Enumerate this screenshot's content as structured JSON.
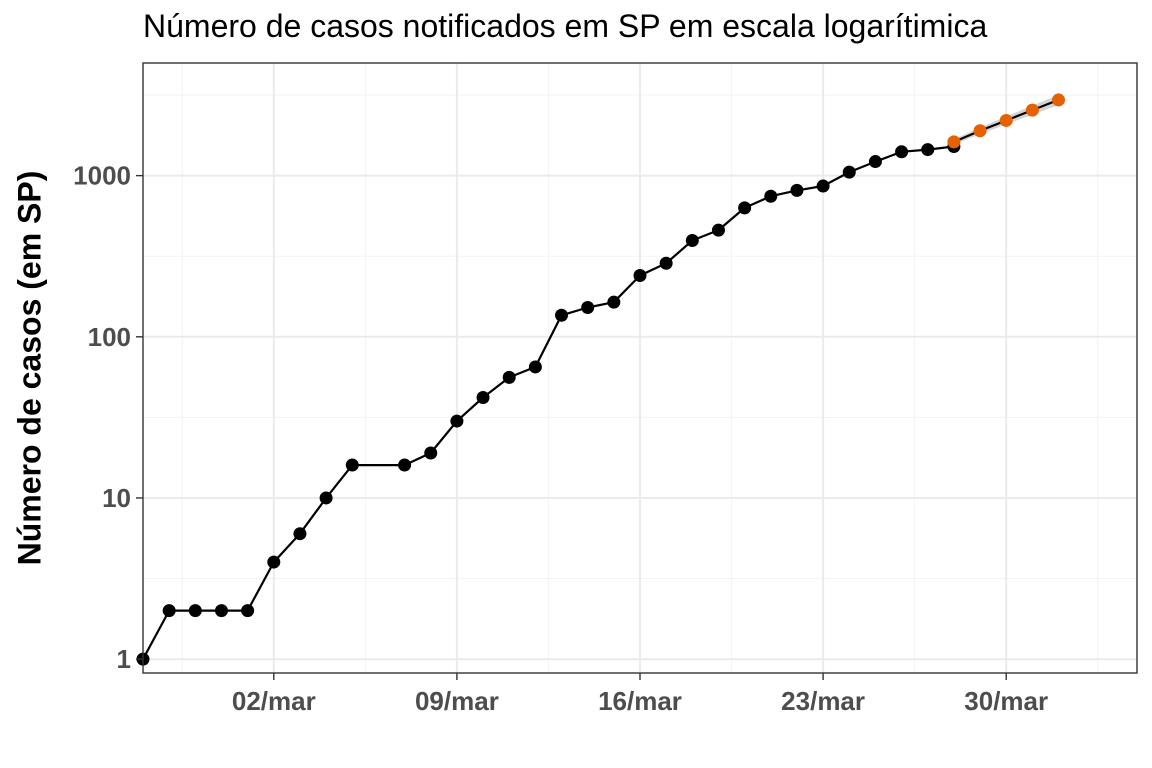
{
  "chart_data": {
    "type": "line",
    "title": "Número de casos notificados em SP em escala logarítimica",
    "ylabel": "Número de casos (em SP)",
    "xlabel": "",
    "y_scale": "log10",
    "ylim": [
      0.82,
      5000
    ],
    "xlim": [
      "2020-02-26",
      "2020-04-04"
    ],
    "x_ticks": [
      {
        "date": "2020-03-02",
        "label": "02/mar"
      },
      {
        "date": "2020-03-09",
        "label": "09/mar"
      },
      {
        "date": "2020-03-16",
        "label": "16/mar"
      },
      {
        "date": "2020-03-23",
        "label": "23/mar"
      },
      {
        "date": "2020-03-30",
        "label": "30/mar"
      }
    ],
    "y_ticks": [
      {
        "value": 1,
        "label": "1"
      },
      {
        "value": 10,
        "label": "10"
      },
      {
        "value": 100,
        "label": "100"
      },
      {
        "value": 1000,
        "label": "1000"
      }
    ],
    "grid": true,
    "series": [
      {
        "color": "#000000",
        "x": [
          "2020-02-26",
          "2020-02-27",
          "2020-02-28",
          "2020-02-29",
          "2020-03-01",
          "2020-03-02",
          "2020-03-03",
          "2020-03-04",
          "2020-03-05",
          "2020-03-07",
          "2020-03-08",
          "2020-03-09",
          "2020-03-10",
          "2020-03-11",
          "2020-03-12",
          "2020-03-13",
          "2020-03-14",
          "2020-03-15",
          "2020-03-16",
          "2020-03-17",
          "2020-03-18",
          "2020-03-19",
          "2020-03-20",
          "2020-03-21",
          "2020-03-22",
          "2020-03-23",
          "2020-03-24",
          "2020-03-25",
          "2020-03-26",
          "2020-03-27",
          "2020-03-28"
        ],
        "values": [
          1,
          2,
          2,
          2,
          2,
          4,
          6,
          10,
          16,
          16,
          19,
          30,
          42,
          56,
          65,
          136,
          152,
          164,
          240,
          286,
          396,
          459,
          631,
          745,
          810,
          862,
          1052,
          1223,
          1406,
          1451,
          1517
        ]
      },
      {
        "color": "#e66101",
        "band_color": "#cccccc",
        "x": [
          "2020-03-28",
          "2020-03-29",
          "2020-03-30",
          "2020-03-31",
          "2020-04-01"
        ],
        "values": [
          1620,
          1900,
          2200,
          2550,
          2950
        ],
        "lower": [
          1560,
          1810,
          2080,
          2390,
          2740
        ],
        "upper": [
          1680,
          1990,
          2330,
          2720,
          3170
        ]
      }
    ]
  }
}
